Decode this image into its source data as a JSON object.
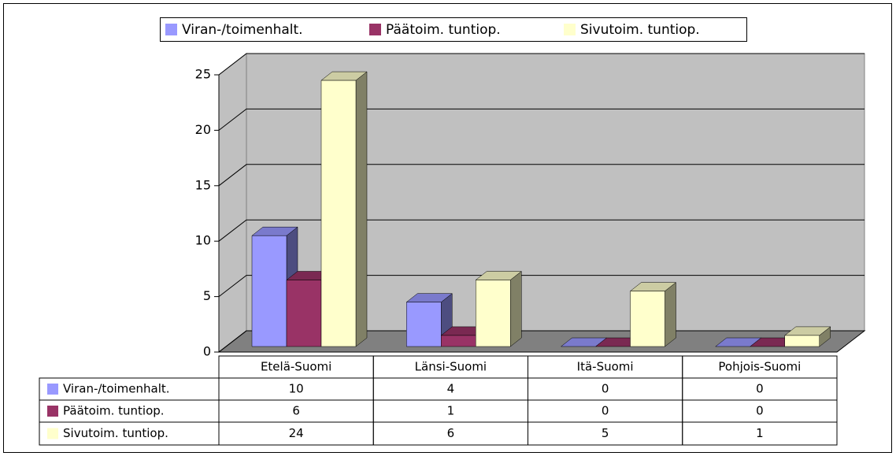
{
  "chart_data": {
    "type": "bar3d",
    "categories": [
      "Etelä-Suomi",
      "Länsi-Suomi",
      "Itä-Suomi",
      "Pohjois-Suomi"
    ],
    "series": [
      {
        "name": "Viran-/toimenhalt.",
        "color": "#9999ff",
        "values": [
          10,
          4,
          0,
          0
        ]
      },
      {
        "name": "Päätoim. tuntiop.",
        "color": "#993366",
        "values": [
          6,
          1,
          0,
          0
        ]
      },
      {
        "name": "Sivutoim. tuntiop.",
        "color": "#ffffcc",
        "values": [
          24,
          6,
          5,
          1
        ]
      }
    ],
    "ylim": [
      0,
      25
    ],
    "yticks": [
      0,
      5,
      10,
      15,
      20,
      25
    ],
    "grid": true,
    "legend": "top",
    "data_table": true
  }
}
